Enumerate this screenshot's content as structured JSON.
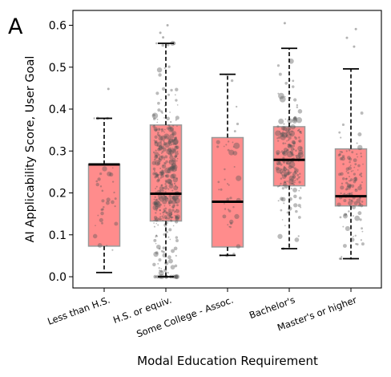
{
  "panel_letter": "A",
  "chart_data": {
    "type": "box",
    "title": "",
    "xlabel": "Modal Education Requirement",
    "ylabel": "AI Applicability Score, User Goal",
    "ylim": [
      -0.03,
      0.635
    ],
    "yticks": [
      0.0,
      0.1,
      0.2,
      0.3,
      0.4,
      0.5,
      0.6
    ],
    "ytick_labels": [
      "0.0",
      "0.1",
      "0.2",
      "0.3",
      "0.4",
      "0.5",
      "0.6"
    ],
    "grid": false,
    "box_color": "#ff8c8c",
    "box_edge_color": "#999999",
    "median_color": "#000000",
    "point_color": "#555555",
    "categories": [
      "Less than H.S.",
      "H.S. or equiv.",
      "Some College - Assoc.",
      "Bachelor's",
      "Master's or higher"
    ],
    "boxes": [
      {
        "whisker_low": 0.01,
        "q1": 0.073,
        "median": 0.268,
        "q3": 0.268,
        "whisker_high": 0.378,
        "n_points": 35
      },
      {
        "whisker_low": 0.0,
        "q1": 0.133,
        "median": 0.198,
        "q3": 0.362,
        "whisker_high": 0.557,
        "n_points": 420
      },
      {
        "whisker_low": 0.051,
        "q1": 0.071,
        "median": 0.179,
        "q3": 0.332,
        "whisker_high": 0.483,
        "n_points": 45
      },
      {
        "whisker_low": 0.067,
        "q1": 0.217,
        "median": 0.279,
        "q3": 0.358,
        "whisker_high": 0.545,
        "n_points": 230
      },
      {
        "whisker_low": 0.043,
        "q1": 0.169,
        "median": 0.192,
        "q3": 0.305,
        "whisker_high": 0.496,
        "n_points": 130
      }
    ],
    "outliers": [
      {
        "category": "Less than H.S.",
        "y": 0.448
      },
      {
        "category": "H.S. or equiv.",
        "y": 0.6
      },
      {
        "category": "H.S. or equiv.",
        "y": 0.582
      },
      {
        "category": "H.S. or equiv.",
        "y": 0.571
      },
      {
        "category": "Bachelor's",
        "y": 0.605
      },
      {
        "category": "Master's or higher",
        "y": 0.591
      },
      {
        "category": "Master's or higher",
        "y": 0.57
      },
      {
        "category": "Master's or higher",
        "y": 0.549
      }
    ]
  }
}
